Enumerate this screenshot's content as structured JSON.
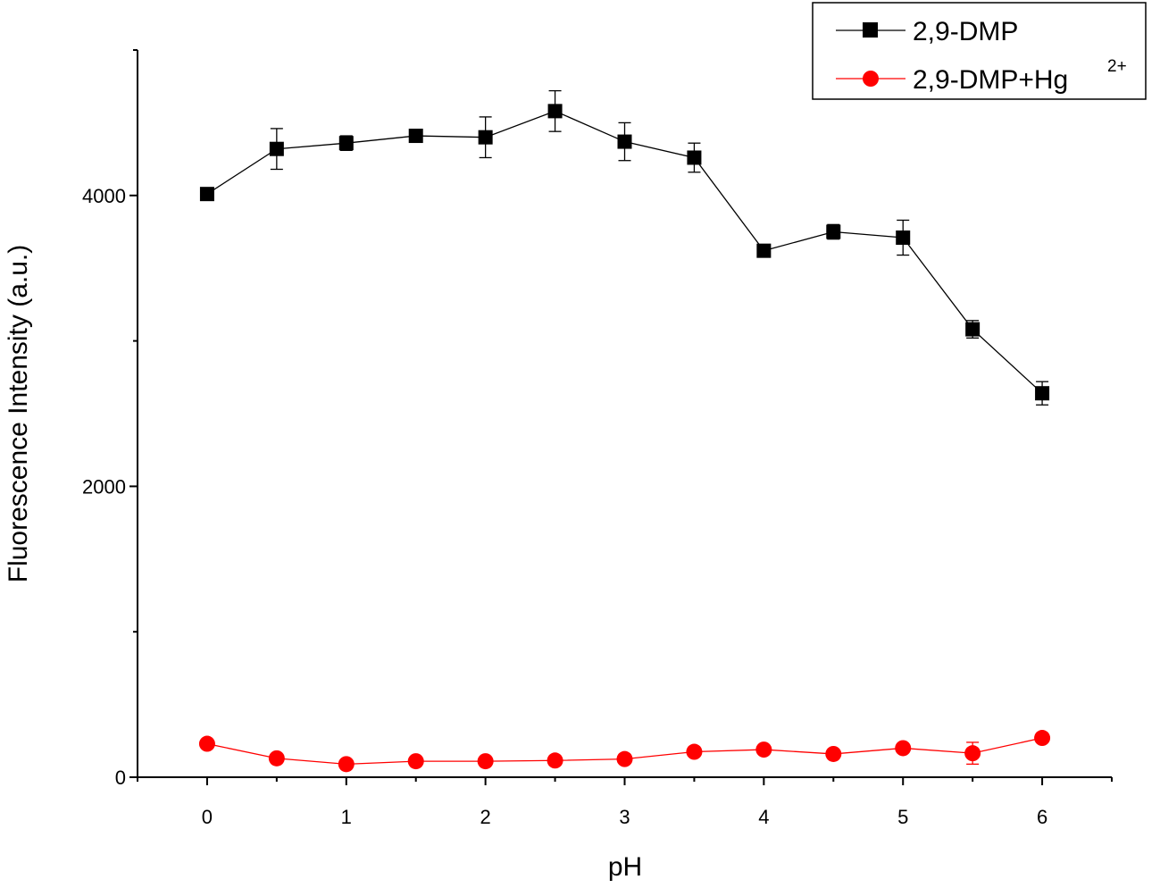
{
  "chart_data": {
    "type": "line",
    "xlabel": "pH",
    "ylabel": "Fluorescence Intensity (a.u.)",
    "xlim": [
      -0.5,
      6.5
    ],
    "ylim": [
      0,
      5000
    ],
    "x_ticks": [
      0,
      1,
      2,
      3,
      4,
      5,
      6
    ],
    "x_tick_labels": [
      "0",
      "1",
      "2",
      "3",
      "4",
      "5",
      "6"
    ],
    "x_minor_ticks": [
      -0.5,
      0.5,
      1.5,
      2.5,
      3.5,
      4.5,
      5.5,
      6.5
    ],
    "y_ticks": [
      0,
      2000,
      4000
    ],
    "y_tick_labels": [
      "0",
      "2000",
      "4000"
    ],
    "y_minor_ticks": [
      1000,
      3000,
      5000
    ],
    "grid": false,
    "legend_position": "top-right",
    "x": [
      0,
      0.5,
      1,
      1.5,
      2,
      2.5,
      3,
      3.5,
      4,
      4.5,
      5,
      5.5,
      6
    ],
    "series": [
      {
        "name": "2,9-DMP",
        "color": "#000000",
        "marker": "square",
        "values": [
          4010,
          4320,
          4360,
          4410,
          4400,
          4580,
          4370,
          4260,
          3620,
          3750,
          3710,
          3080,
          2640
        ],
        "errors": [
          0,
          140,
          50,
          0,
          140,
          140,
          130,
          100,
          0,
          50,
          120,
          60,
          80
        ]
      },
      {
        "name_main": "2,9-DMP+Hg",
        "name_sup": "2+",
        "color": "#ff0000",
        "marker": "circle",
        "values": [
          230,
          130,
          90,
          110,
          110,
          115,
          125,
          175,
          190,
          160,
          200,
          165,
          270
        ],
        "errors": [
          0,
          0,
          0,
          0,
          0,
          0,
          0,
          0,
          0,
          0,
          0,
          75,
          0
        ]
      }
    ]
  }
}
